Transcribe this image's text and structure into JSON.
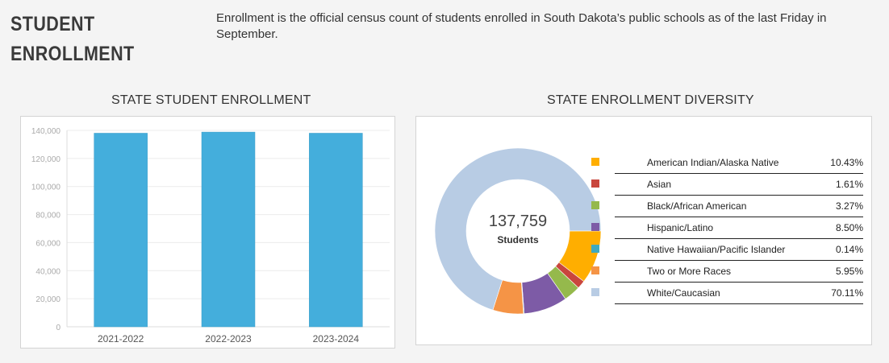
{
  "header": {
    "title_line1": "STUDENT",
    "title_line2": "ENROLLMENT",
    "intro": "Enrollment is the official census count of students enrolled in South Dakota’s public schools as of the last Friday in September."
  },
  "chart_data": [
    {
      "type": "bar",
      "title": "STATE STUDENT ENROLLMENT",
      "categories": [
        "2021-2022",
        "2022-2023",
        "2023-2024"
      ],
      "values": [
        138000,
        138800,
        138000
      ],
      "ylim": [
        0,
        140000
      ],
      "yticks": [
        "0",
        "20,000",
        "40,000",
        "60,000",
        "80,000",
        "100,000",
        "120,000",
        "140,000"
      ],
      "ytick_values": [
        0,
        20000,
        40000,
        60000,
        80000,
        100000,
        120000,
        140000
      ],
      "bar_color": "#44aedc",
      "grid": true
    },
    {
      "type": "pie",
      "title": "STATE ENROLLMENT DIVERSITY",
      "center_value": "137,759",
      "center_label": "Students",
      "slices": [
        {
          "label": "American Indian/Alaska Native",
          "value": 10.43,
          "display": "10.43%",
          "color": "#ffae00"
        },
        {
          "label": "Asian",
          "value": 1.61,
          "display": "1.61%",
          "color": "#c9463d"
        },
        {
          "label": "Black/African American",
          "value": 3.27,
          "display": "3.27%",
          "color": "#95b94c"
        },
        {
          "label": "Hispanic/Latino",
          "value": 8.5,
          "display": "8.50%",
          "color": "#7d5ba6"
        },
        {
          "label": "Native Hawaiian/Pacific Islander",
          "value": 0.14,
          "display": "0.14%",
          "color": "#3fa9be"
        },
        {
          "label": "Two or More Races",
          "value": 5.95,
          "display": "5.95%",
          "color": "#f59446"
        },
        {
          "label": "White/Caucasian",
          "value": 70.11,
          "display": "70.11%",
          "color": "#b8cce4"
        }
      ]
    }
  ]
}
